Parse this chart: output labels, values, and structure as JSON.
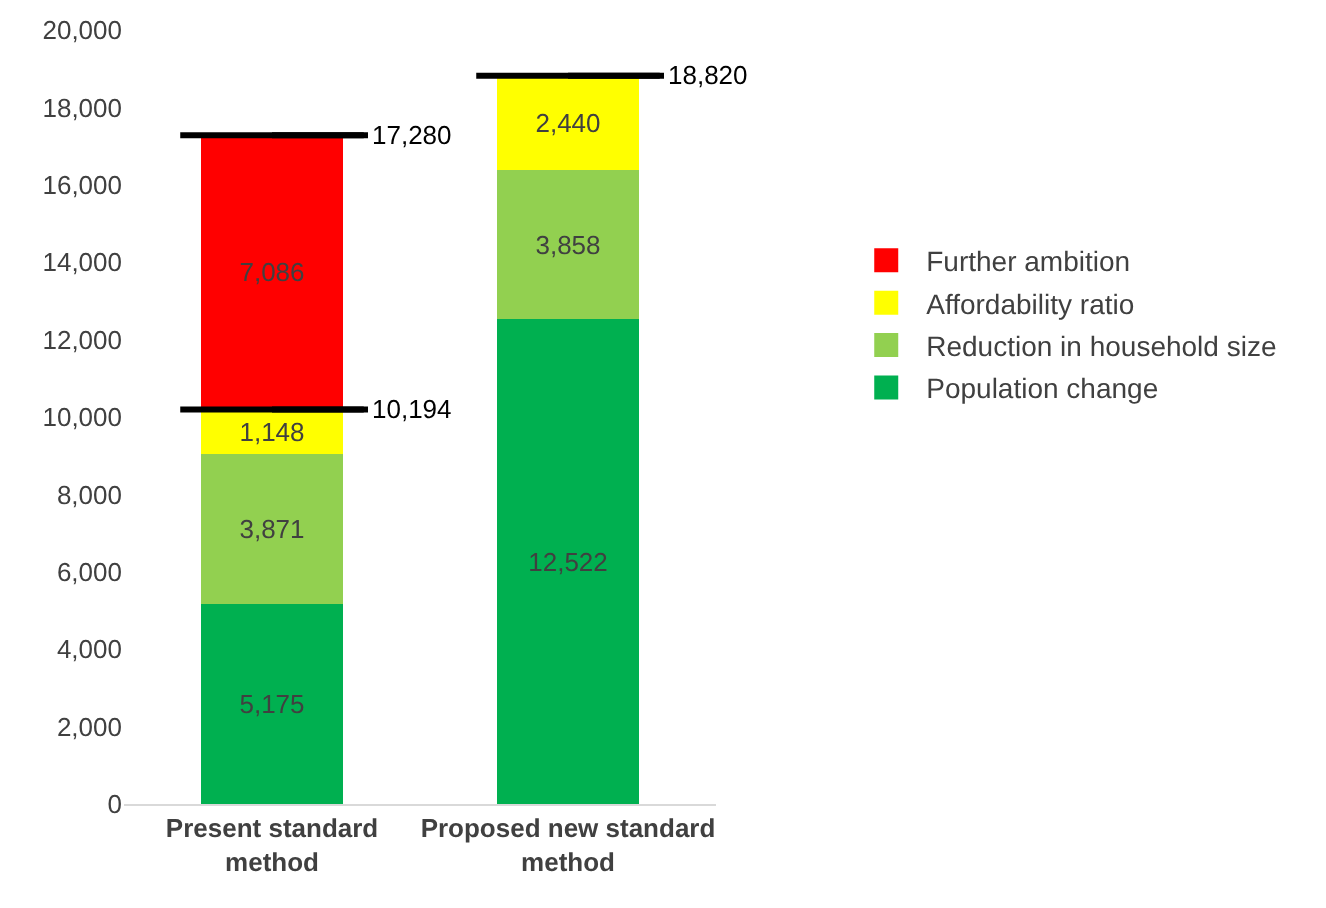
{
  "chart_data": {
    "type": "bar",
    "stacked": true,
    "categories": [
      "Present standard method",
      "Proposed new standard method"
    ],
    "series": [
      {
        "name": "Population change",
        "color": "#00b050",
        "values": [
          5175,
          12522
        ],
        "value_labels": [
          "5,175",
          "12,522"
        ]
      },
      {
        "name": "Reduction in household size",
        "color": "#92d050",
        "values": [
          3871,
          3858
        ],
        "value_labels": [
          "3,871",
          "3,858"
        ]
      },
      {
        "name": "Affordability ratio",
        "color": "#ffff00",
        "values": [
          1148,
          2440
        ],
        "value_labels": [
          "1,148",
          "2,440"
        ]
      },
      {
        "name": "Further ambition",
        "color": "#ff0000",
        "values": [
          7086,
          null
        ],
        "value_labels": [
          "7,086",
          null
        ]
      }
    ],
    "annotations": [
      {
        "text": "10,194",
        "x": "Present standard method",
        "y": 10194
      },
      {
        "text": "17,280",
        "x": "Present standard method",
        "y": 17280
      },
      {
        "text": "18,820",
        "x": "Proposed new standard method",
        "y": 18820
      }
    ],
    "ylim": [
      0,
      20000
    ],
    "yticks": [
      0,
      {
        "value": 2000,
        "label": "2,000"
      },
      {
        "value": 4000,
        "label": "4,000"
      },
      {
        "value": 6000,
        "label": "6,000"
      },
      {
        "value": 8000,
        "label": "8,000"
      },
      {
        "value": 10000,
        "label": "10,000"
      },
      {
        "value": 12000,
        "label": "12,000"
      },
      {
        "value": 14000,
        "label": "14,000"
      },
      {
        "value": 16000,
        "label": "16,000"
      },
      {
        "value": 18000,
        "label": "18,000"
      },
      {
        "value": 20000,
        "label": "20,000"
      }
    ],
    "grid": false,
    "legend": "right"
  }
}
